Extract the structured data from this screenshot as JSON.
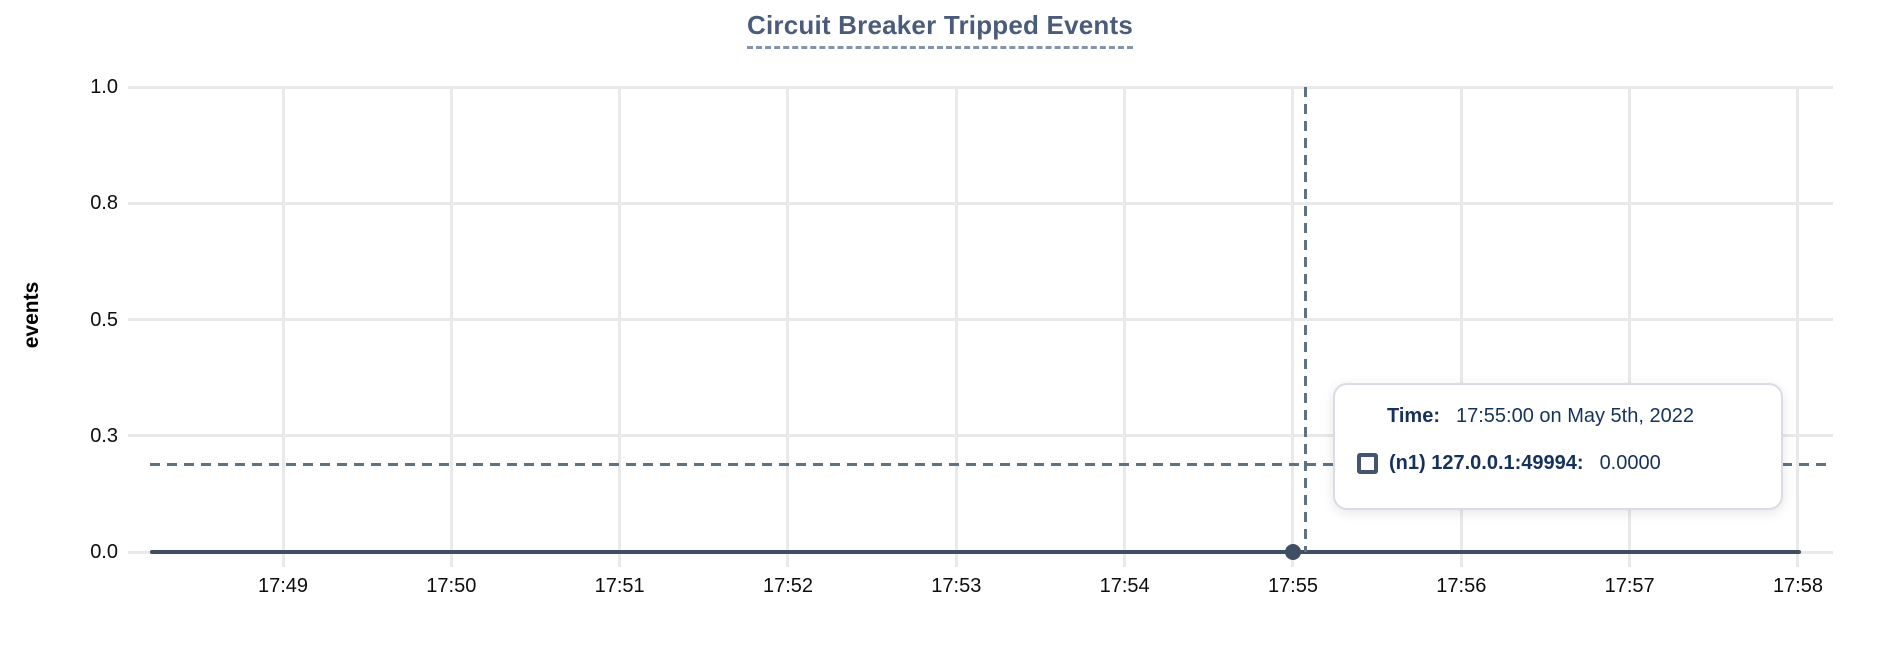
{
  "chart": {
    "title": "Circuit Breaker Tripped Events",
    "y_axis_title": "events"
  },
  "chart_data": {
    "type": "line",
    "title": "Circuit Breaker Tripped Events",
    "xlabel": "",
    "ylabel": "events",
    "ylim": [
      0.0,
      1.0
    ],
    "grid": true,
    "x_tick_labels": [
      "17:49",
      "17:50",
      "17:51",
      "17:52",
      "17:53",
      "17:54",
      "17:55",
      "17:56",
      "17:57",
      "17:58"
    ],
    "y_tick_values": [
      0,
      0.25,
      0.5,
      0.75,
      1.0
    ],
    "y_tick_labels": [
      "0.0",
      "0.3",
      "0.5",
      "0.8",
      "1.0"
    ],
    "series": [
      {
        "name": "(n1) 127.0.0.1:49994",
        "color": "#3f4e63",
        "x": [
          "17:49",
          "17:50",
          "17:51",
          "17:52",
          "17:53",
          "17:54",
          "17:55",
          "17:56",
          "17:57",
          "17:58"
        ],
        "values": [
          0,
          0,
          0,
          0,
          0,
          0,
          0,
          0,
          0,
          0
        ]
      }
    ],
    "cursor": {
      "x": "17:55",
      "value": 0.0
    }
  },
  "tooltip": {
    "time_label": "Time:",
    "time_value": "17:55:00 on May 5th, 2022",
    "series_label": "(n1) 127.0.0.1:49994:",
    "series_value": "0.0000",
    "marker_icon": "square-outline-icon"
  },
  "colors": {
    "title": "#4a5c7a",
    "title_underline": "#8494ab",
    "gridline": "#e9e9e9",
    "series": "#3f4e63",
    "crosshair": "#5f7183",
    "tooltip_text": "#15325b",
    "tooltip_border": "#d9dce2",
    "axis_text": "#0d0d0d"
  }
}
